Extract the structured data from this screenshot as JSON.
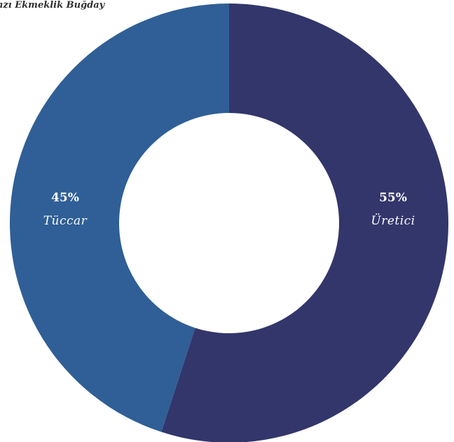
{
  "chart_data": {
    "type": "pie",
    "title": "azı Ekmeklik Buğday",
    "categories": [
      "Üretici",
      "Tüccar"
    ],
    "values": [
      55,
      45
    ],
    "labels": [
      "55%",
      "45%"
    ],
    "colors": [
      "#33366b",
      "#2f5f96"
    ]
  }
}
